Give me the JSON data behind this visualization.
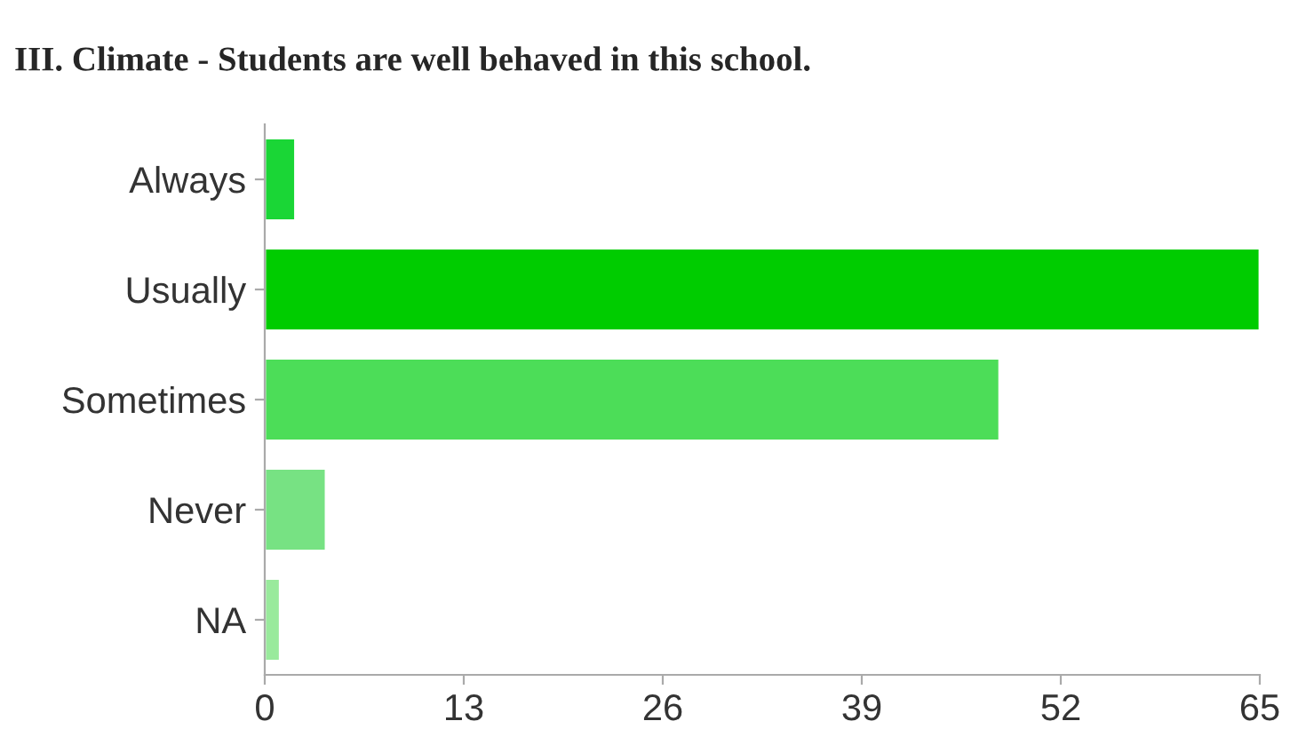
{
  "chart_data": {
    "type": "bar",
    "orientation": "horizontal",
    "title": "III. Climate - Students are well behaved in this school.",
    "categories": [
      "Always",
      "Usually",
      "Sometimes",
      "Never",
      "NA"
    ],
    "values": [
      2,
      65,
      48,
      4,
      1
    ],
    "colors": [
      "#1ad636",
      "#00cc00",
      "#4cdd58",
      "#77e283",
      "#99ea9c"
    ],
    "xlim": [
      0,
      65
    ],
    "xticks": [
      0,
      13,
      26,
      39,
      52,
      65
    ],
    "grid": false,
    "legend": false
  }
}
